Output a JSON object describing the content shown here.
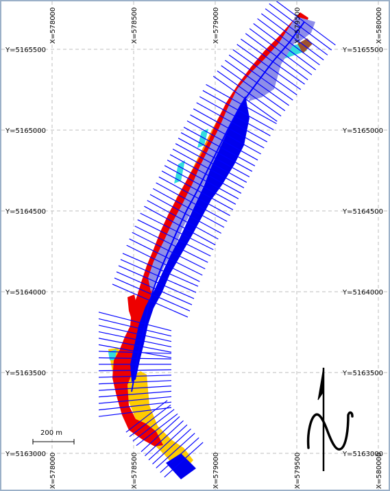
{
  "grid": {
    "x_labels": [
      "X=578000",
      "X=578500",
      "X=579000",
      "X=579500",
      "X=580000"
    ],
    "y_labels": [
      "Y=5165500",
      "Y=5165000",
      "Y=5164500",
      "Y=5164000",
      "Y=5163500",
      "Y=5163000"
    ]
  },
  "scale_bar": {
    "label": "200 m"
  },
  "colors": {
    "cross_section": "#0000ff",
    "deep_channel": "#0000ee",
    "lavender": "#8e8ee8",
    "red": "#ee0000",
    "orange": "#ff8800",
    "yellow": "#ffcc00",
    "cyan": "#33dddd",
    "brown": "#a0522d",
    "grid": "#bdbdbd"
  },
  "north_arrow": {
    "icon": "north-arrow-icon"
  }
}
